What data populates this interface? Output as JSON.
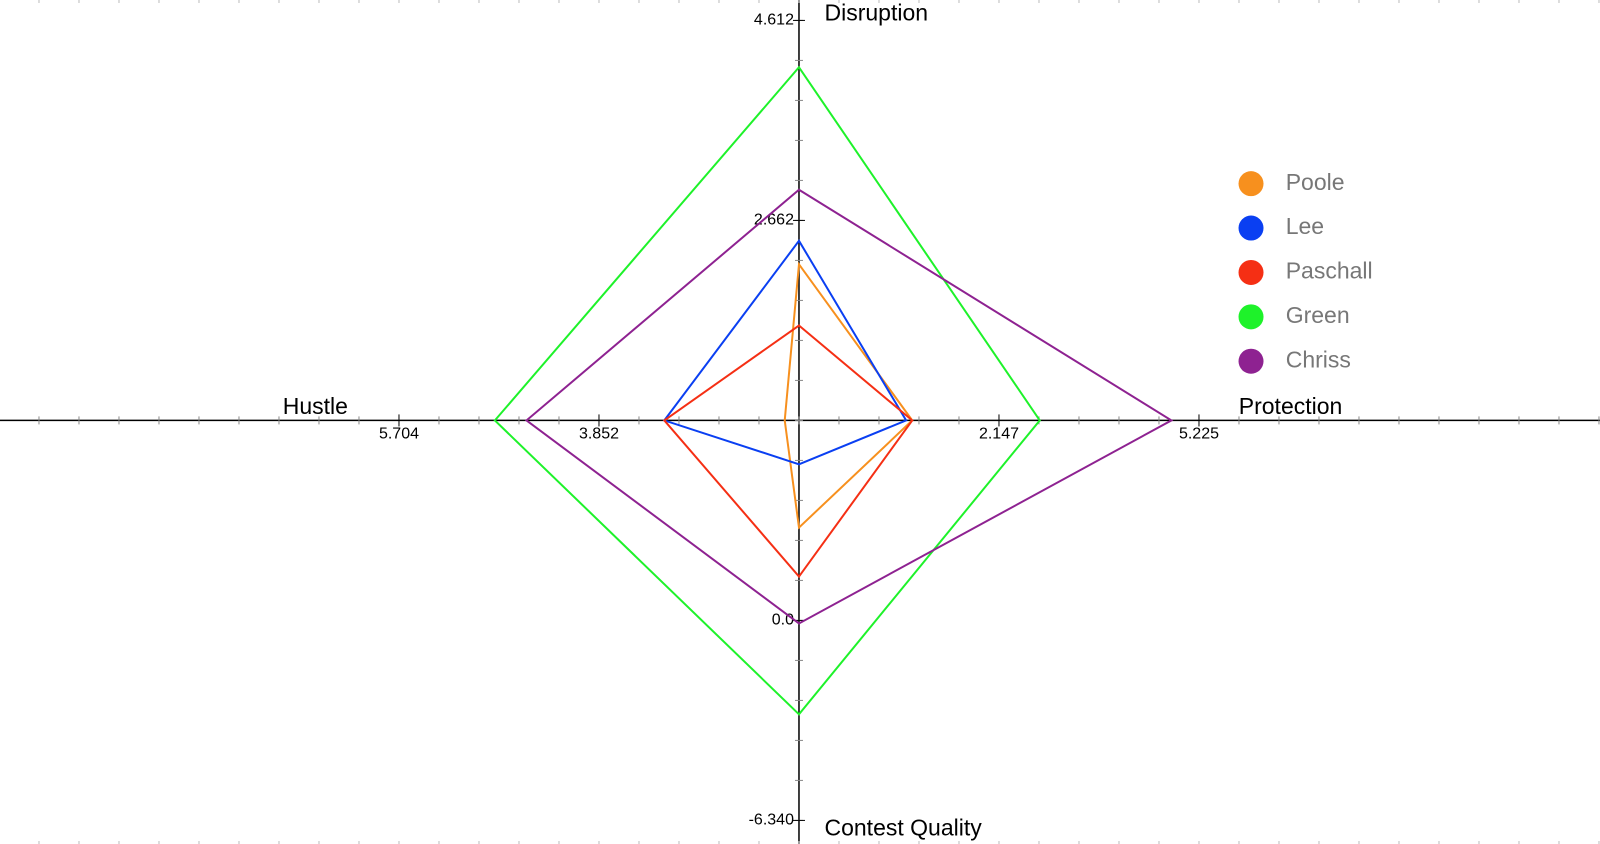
{
  "chart_data": {
    "type": "radar",
    "axes": [
      {
        "name": "Disruption",
        "lim": [
          0.712,
          4.612
        ],
        "ticks": [
          2.662,
          4.612
        ]
      },
      {
        "name": "Protection",
        "lim": [
          -0.931,
          5.225
        ],
        "ticks": [
          2.147,
          5.225
        ]
      },
      {
        "name": "Contest Quality",
        "lim": [
          6.34,
          -6.34
        ],
        "ticks": [
          {
            "value": 0,
            "label": "0.0"
          },
          {
            "value": -6.34,
            "label": "-6.340"
          }
        ]
      },
      {
        "name": "Hustle",
        "lim": [
          2.0,
          5.704
        ],
        "ticks": [
          3.852,
          5.704
        ]
      }
    ],
    "series": [
      {
        "name": "Poole",
        "color": "#f7901e",
        "values": [
          2.234,
          0.812,
          2.943,
          2.132
        ]
      },
      {
        "name": "Lee",
        "color": "#0a3ff2",
        "values": [
          2.463,
          0.718,
          4.949,
          3.247
        ]
      },
      {
        "name": "Paschall",
        "color": "#f52f14",
        "values": [
          1.637,
          0.812,
          1.391,
          3.247
        ]
      },
      {
        "name": "Green",
        "color": "#1ef22a",
        "values": [
          4.155,
          2.775,
          -2.977,
          4.816
        ]
      },
      {
        "name": "Chriss",
        "color": "#8e2291",
        "values": [
          2.961,
          4.801,
          -0.097,
          4.523
        ]
      }
    ]
  }
}
